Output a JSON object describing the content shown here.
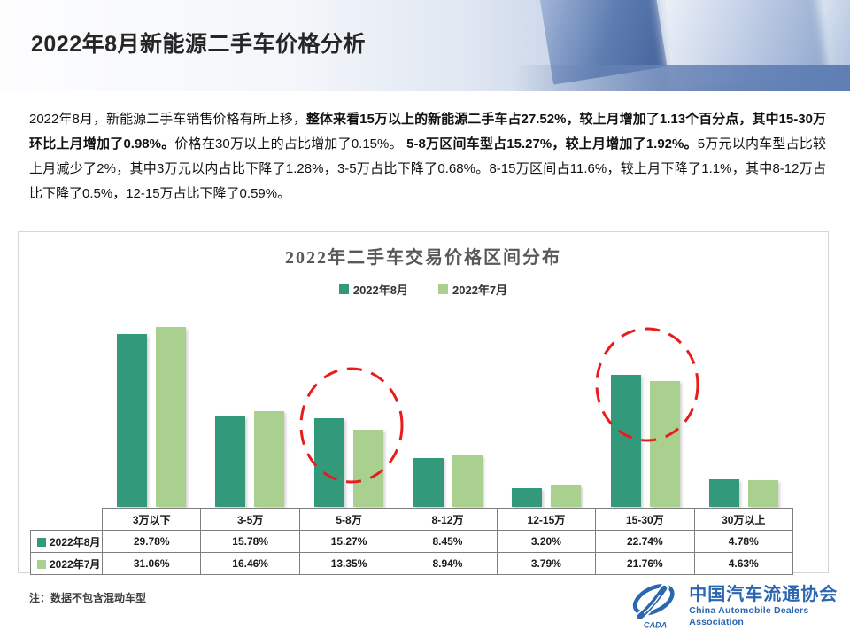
{
  "header": {
    "title": "2022年8月新能源二手车价格分析"
  },
  "summary": {
    "segments": [
      {
        "text": "2022年8月，新能源二手车销售价格有所上移，",
        "bold": false
      },
      {
        "text": "整体来看15万以上的新能源二手车占27.52%，较上月增加了1.13个百分点，其中15-30万环比上月增加了0.98%。",
        "bold": true
      },
      {
        "text": "价格在30万以上的占比增加了0.15%。",
        "bold": false
      },
      {
        "text": " 5-8万区间车型占15.27%，较上月增加了1.92%。",
        "bold": true
      },
      {
        "text": "5万元以内车型占比较上月减少了2%，其中3万元以内占比下降了1.28%，3-5万占比下降了0.68%。8-15万区间占11.6%，较上月下降了1.1%，其中8-12万占比下降了0.5%，12-15万占比下降了0.59%。",
        "bold": false
      }
    ]
  },
  "chart_data": {
    "type": "bar",
    "title": "2022年二手车交易价格区间分布",
    "categories": [
      "3万以下",
      "3-5万",
      "5-8万",
      "8-12万",
      "12-15万",
      "15-30万",
      "30万以上"
    ],
    "series": [
      {
        "name": "2022年8月",
        "color": "#33997b",
        "values": [
          29.78,
          15.78,
          15.27,
          8.45,
          3.2,
          22.74,
          4.78
        ]
      },
      {
        "name": "2022年7月",
        "color": "#a9d08e",
        "values": [
          31.06,
          16.46,
          13.35,
          8.94,
          3.79,
          21.76,
          4.63
        ]
      }
    ],
    "value_suffix": "%",
    "ylim": [
      0,
      33
    ],
    "legend_position": "top",
    "grid": false,
    "highlighted_categories": [
      "5-8万",
      "15-30万"
    ],
    "highlight_color": "#e91c1c"
  },
  "footer": {
    "note": "注：数据不包含混动车型",
    "logo": {
      "acronym": "CADA",
      "name_zh": "中国汽车流通协会",
      "name_en": "China Automobile Dealers Association",
      "color": "#2b66b0"
    }
  }
}
